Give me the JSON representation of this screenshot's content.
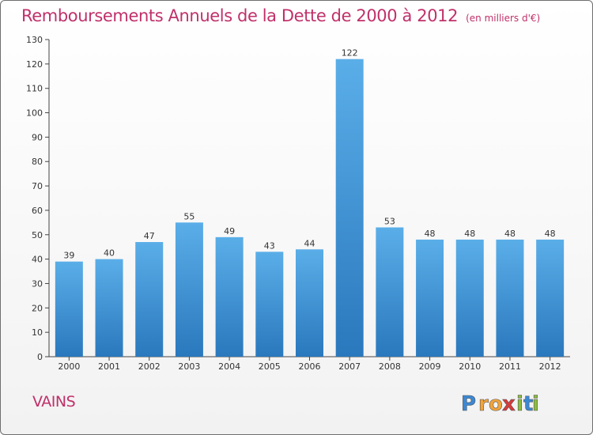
{
  "chart_data": {
    "type": "bar",
    "title": "Remboursements Annuels de la Dette de 2000 à 2012",
    "unit": "(en milliers d'€)",
    "categories": [
      "2000",
      "2001",
      "2002",
      "2003",
      "2004",
      "2005",
      "2006",
      "2007",
      "2008",
      "2009",
      "2010",
      "2011",
      "2012"
    ],
    "values": [
      39,
      40,
      47,
      55,
      49,
      43,
      44,
      122,
      53,
      48,
      48,
      48,
      48
    ],
    "value_labels": [
      "39",
      "40",
      "47",
      "55",
      "49",
      "43",
      "44",
      "122",
      "53",
      "48",
      "48",
      "48",
      "48"
    ],
    "ylim": [
      0,
      130
    ],
    "yticks": [
      0,
      10,
      20,
      30,
      40,
      50,
      60,
      70,
      80,
      90,
      100,
      110,
      120,
      130
    ],
    "grid": false,
    "bar_color_top": "#5aaee8",
    "bar_color_bottom": "#2a78bd"
  },
  "commune": "VAINS",
  "logo": {
    "text": "Proxiti",
    "letters": [
      "P",
      "r",
      "o",
      "x",
      "i",
      "t",
      "i"
    ],
    "colors": [
      "#3b88d4",
      "#f2a33a",
      "#f2a33a",
      "#d93a3a",
      "#8dbe3f",
      "#3b88d4",
      "#8dbe3f"
    ]
  },
  "colors": {
    "title": "#c0306a",
    "axis": "#444444"
  }
}
